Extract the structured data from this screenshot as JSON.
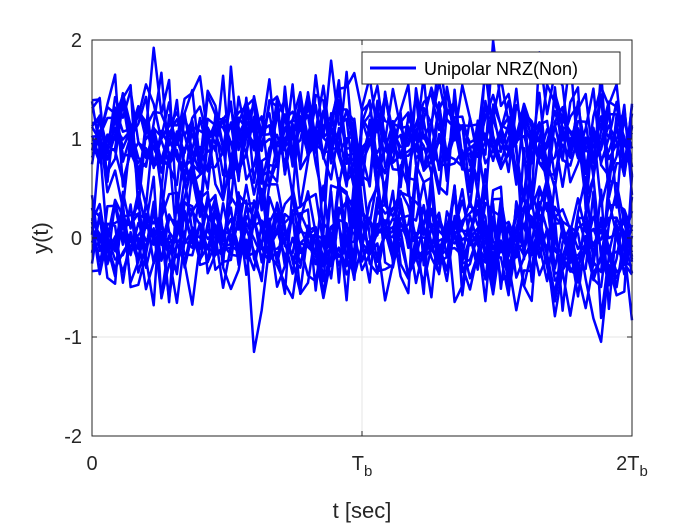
{
  "chart_data": {
    "type": "line",
    "xlabel": "t [sec]",
    "ylabel": "y(t)",
    "ylim": [
      -2,
      2
    ],
    "yticks": [
      "-2",
      "-1",
      "0",
      "1",
      "2"
    ],
    "xticks": [
      {
        "main": "0",
        "sub": ""
      },
      {
        "main": "T",
        "sub": "b"
      },
      {
        "main": "2T",
        "sub": "b"
      }
    ],
    "grid": true,
    "legend_position": "top-right",
    "series": [
      {
        "name": "Unipolar NRZ(Non)",
        "color": "#0000ff"
      }
    ]
  }
}
